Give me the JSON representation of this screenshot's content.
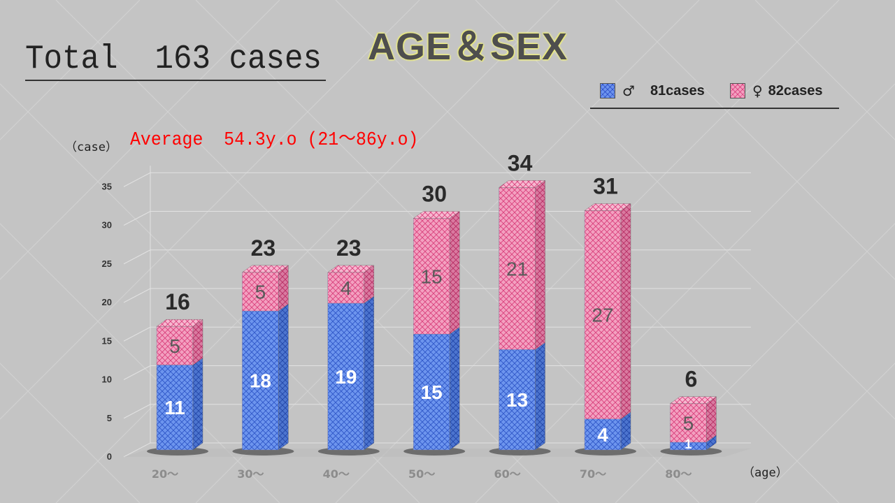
{
  "header": {
    "total": "Total  163 cases",
    "title": "AGE＆SEX",
    "average": "Average  54.3y.o (21～86y.o)"
  },
  "legend": {
    "male_symbol": "♂",
    "male_label": "81cases",
    "female_symbol": "♀",
    "female_label": "82cases"
  },
  "colors": {
    "male": "#6d95ee",
    "female": "#f3a0c0",
    "average_text": "#ff0000"
  },
  "chart_data": {
    "type": "bar",
    "stacked": true,
    "categories": [
      "20～",
      "30～",
      "40～",
      "50～",
      "60～",
      "70～",
      "80～"
    ],
    "series": [
      {
        "name": "♂",
        "values": [
          11,
          18,
          19,
          15,
          13,
          4,
          1
        ]
      },
      {
        "name": "♀",
        "values": [
          5,
          5,
          4,
          15,
          21,
          27,
          5
        ]
      }
    ],
    "totals": [
      16,
      23,
      23,
      30,
      34,
      31,
      6
    ],
    "ylabel": "（case）",
    "xlabel": "（age）",
    "ylim": [
      0,
      35
    ],
    "yticks": [
      0,
      5,
      10,
      15,
      20,
      25,
      30,
      35
    ],
    "grid": true,
    "legend_position": "top-right"
  }
}
